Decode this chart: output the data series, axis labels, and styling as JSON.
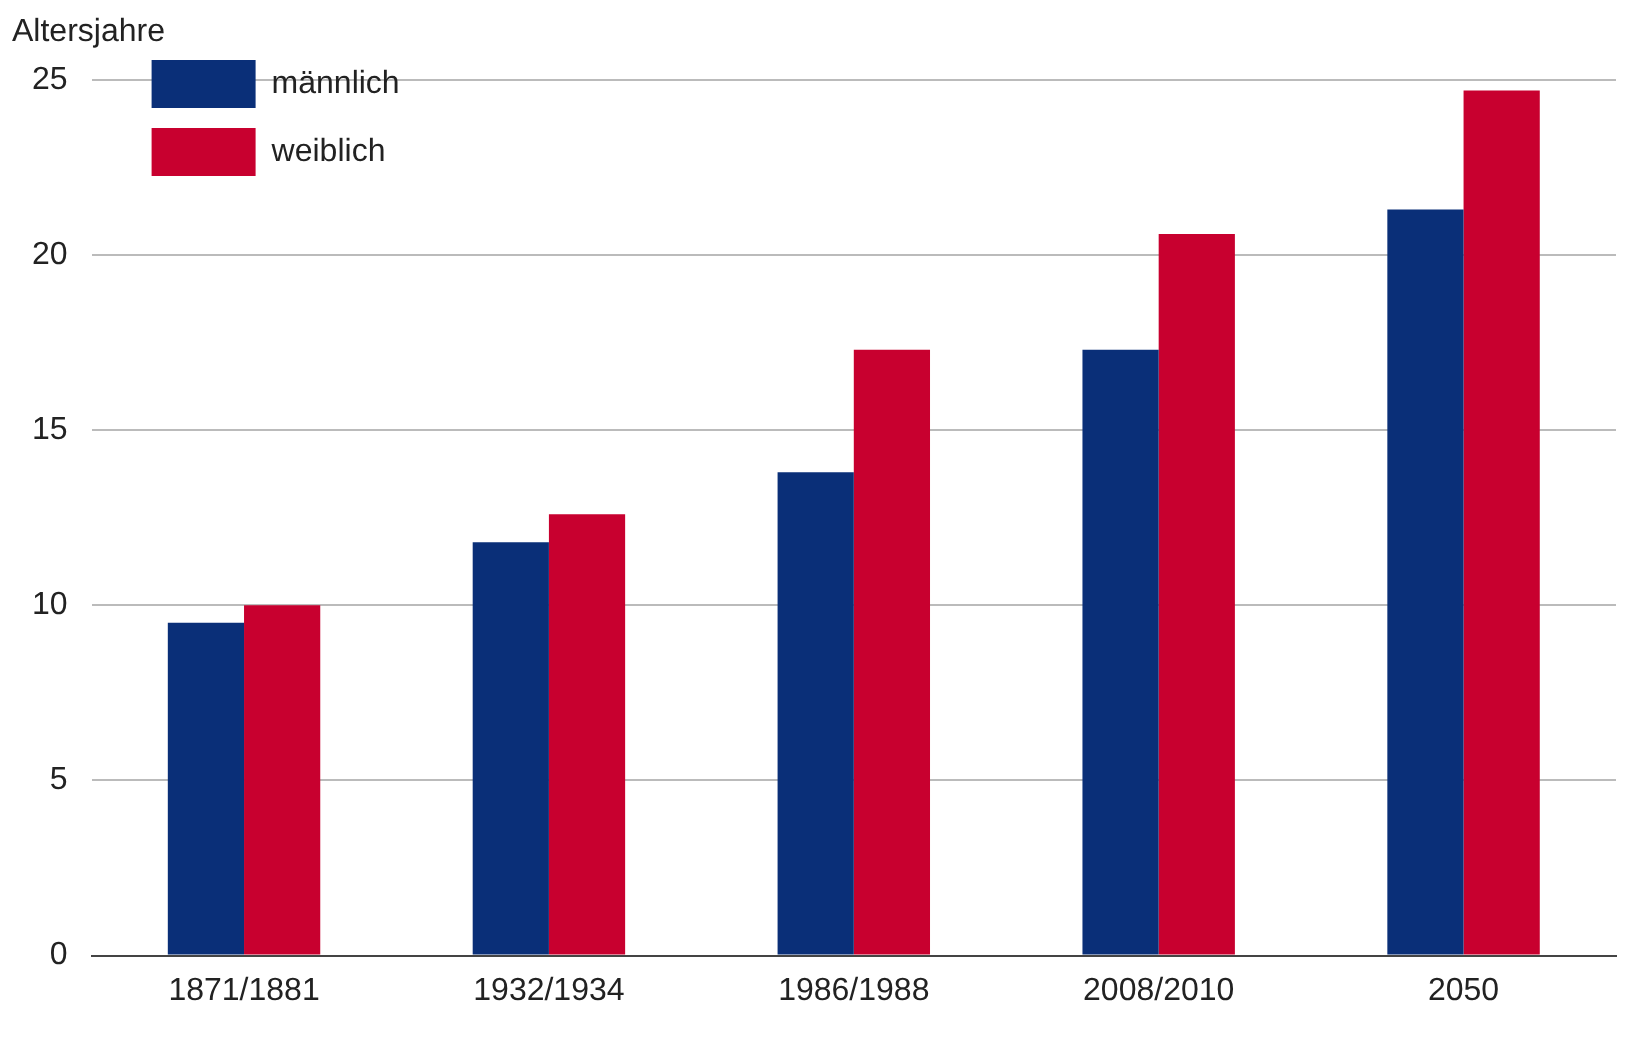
{
  "chart_data": {
    "type": "bar",
    "ylabel": "Altersjahre",
    "categories": [
      "1871/1881",
      "1932/1934",
      "1986/1988",
      "2008/2010",
      "2050"
    ],
    "series": [
      {
        "name": "männlich",
        "color": "#0a2f78",
        "values": [
          9.5,
          11.8,
          13.8,
          17.3,
          21.3
        ]
      },
      {
        "name": "weiblich",
        "color": "#c8002f",
        "values": [
          10.0,
          12.6,
          17.3,
          20.6,
          24.7
        ]
      }
    ],
    "ylim": [
      0,
      25
    ],
    "yticks": [
      0,
      5,
      10,
      15,
      20,
      25
    ],
    "grid": "y",
    "legend": "top left"
  }
}
